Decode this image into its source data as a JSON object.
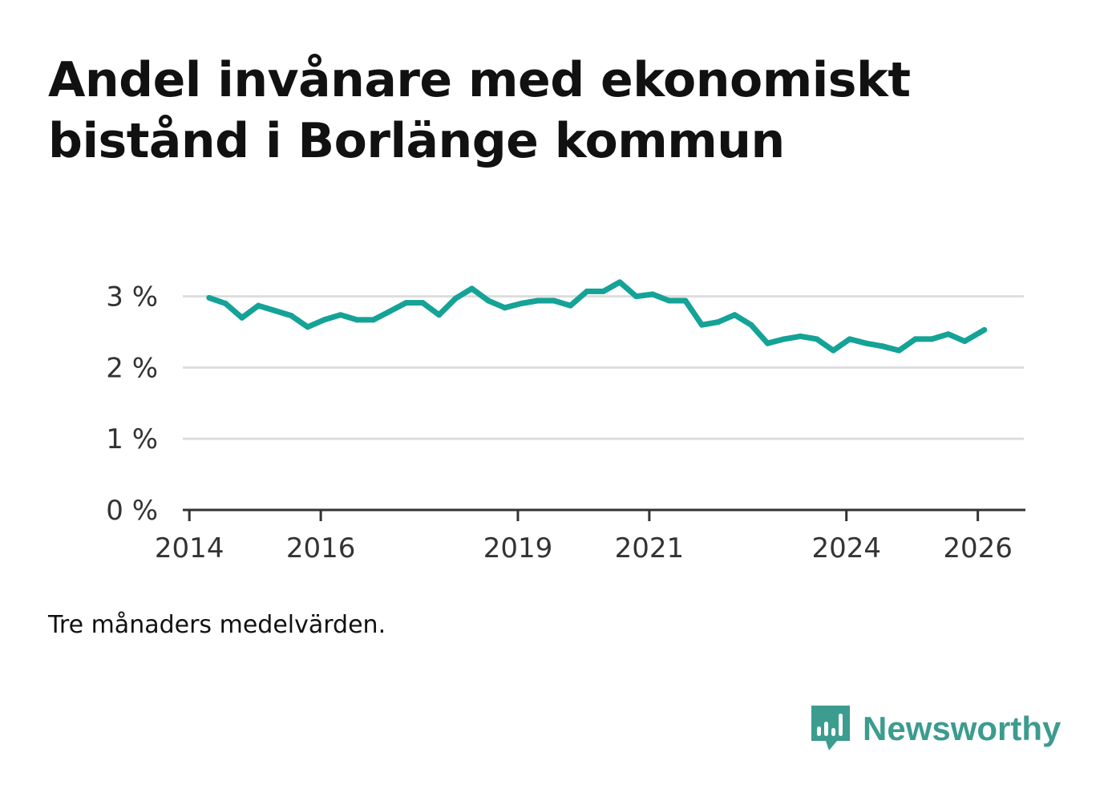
{
  "title": "Andel invånare med ekonomiskt bistånd i Borlänge kommun",
  "note": "Tre månaders medelvärden.",
  "brand": {
    "name": "Newsworthy",
    "logo_icon": "newsworthy-bar-chart-bubble-icon"
  },
  "colors": {
    "line": "#14a396",
    "grid": "#dddddd",
    "axis": "#333333",
    "brand": "#3b9c8f"
  },
  "chart_data": {
    "type": "line",
    "title": "Andel invånare med ekonomiskt bistånd i Borlänge kommun",
    "xlabel": "",
    "ylabel": "",
    "xlim": [
      2013.9,
      2026.7
    ],
    "ylim": [
      0,
      3.3
    ],
    "y_ticks": [
      {
        "value": 0,
        "label": "0 %"
      },
      {
        "value": 1,
        "label": "1 %"
      },
      {
        "value": 2,
        "label": "2 %"
      },
      {
        "value": 3,
        "label": "3 %"
      }
    ],
    "x_ticks": [
      {
        "value": 2014,
        "label": "2014"
      },
      {
        "value": 2016,
        "label": "2016"
      },
      {
        "value": 2019,
        "label": "2019"
      },
      {
        "value": 2021,
        "label": "2021"
      },
      {
        "value": 2024,
        "label": "2024"
      },
      {
        "value": 2026,
        "label": "2026"
      }
    ],
    "grid": "horizontal",
    "series": [
      {
        "name": "Andel invånare med ekonomiskt bistånd",
        "x": [
          2014.3,
          2014.55,
          2014.8,
          2015.05,
          2015.3,
          2015.55,
          2015.8,
          2016.05,
          2016.3,
          2016.55,
          2016.8,
          2017.05,
          2017.3,
          2017.55,
          2017.8,
          2018.05,
          2018.3,
          2018.55,
          2018.8,
          2019.05,
          2019.3,
          2019.55,
          2019.8,
          2020.05,
          2020.3,
          2020.55,
          2020.8,
          2021.05,
          2021.3,
          2021.55,
          2021.8,
          2022.05,
          2022.3,
          2022.55,
          2022.8,
          2023.05,
          2023.3,
          2023.55,
          2023.8,
          2024.05,
          2024.3,
          2024.55,
          2024.8,
          2025.05,
          2025.3,
          2025.55,
          2025.8,
          2026.1
        ],
        "values": [
          2.98,
          2.9,
          2.7,
          2.87,
          2.8,
          2.73,
          2.57,
          2.67,
          2.74,
          2.67,
          2.67,
          2.79,
          2.91,
          2.91,
          2.74,
          2.97,
          3.11,
          2.94,
          2.84,
          2.9,
          2.94,
          2.94,
          2.87,
          3.07,
          3.07,
          3.2,
          3.0,
          3.03,
          2.94,
          2.94,
          2.6,
          2.64,
          2.74,
          2.6,
          2.34,
          2.4,
          2.44,
          2.4,
          2.24,
          2.4,
          2.34,
          2.3,
          2.24,
          2.4,
          2.4,
          2.47,
          2.37,
          2.53
        ]
      }
    ]
  }
}
